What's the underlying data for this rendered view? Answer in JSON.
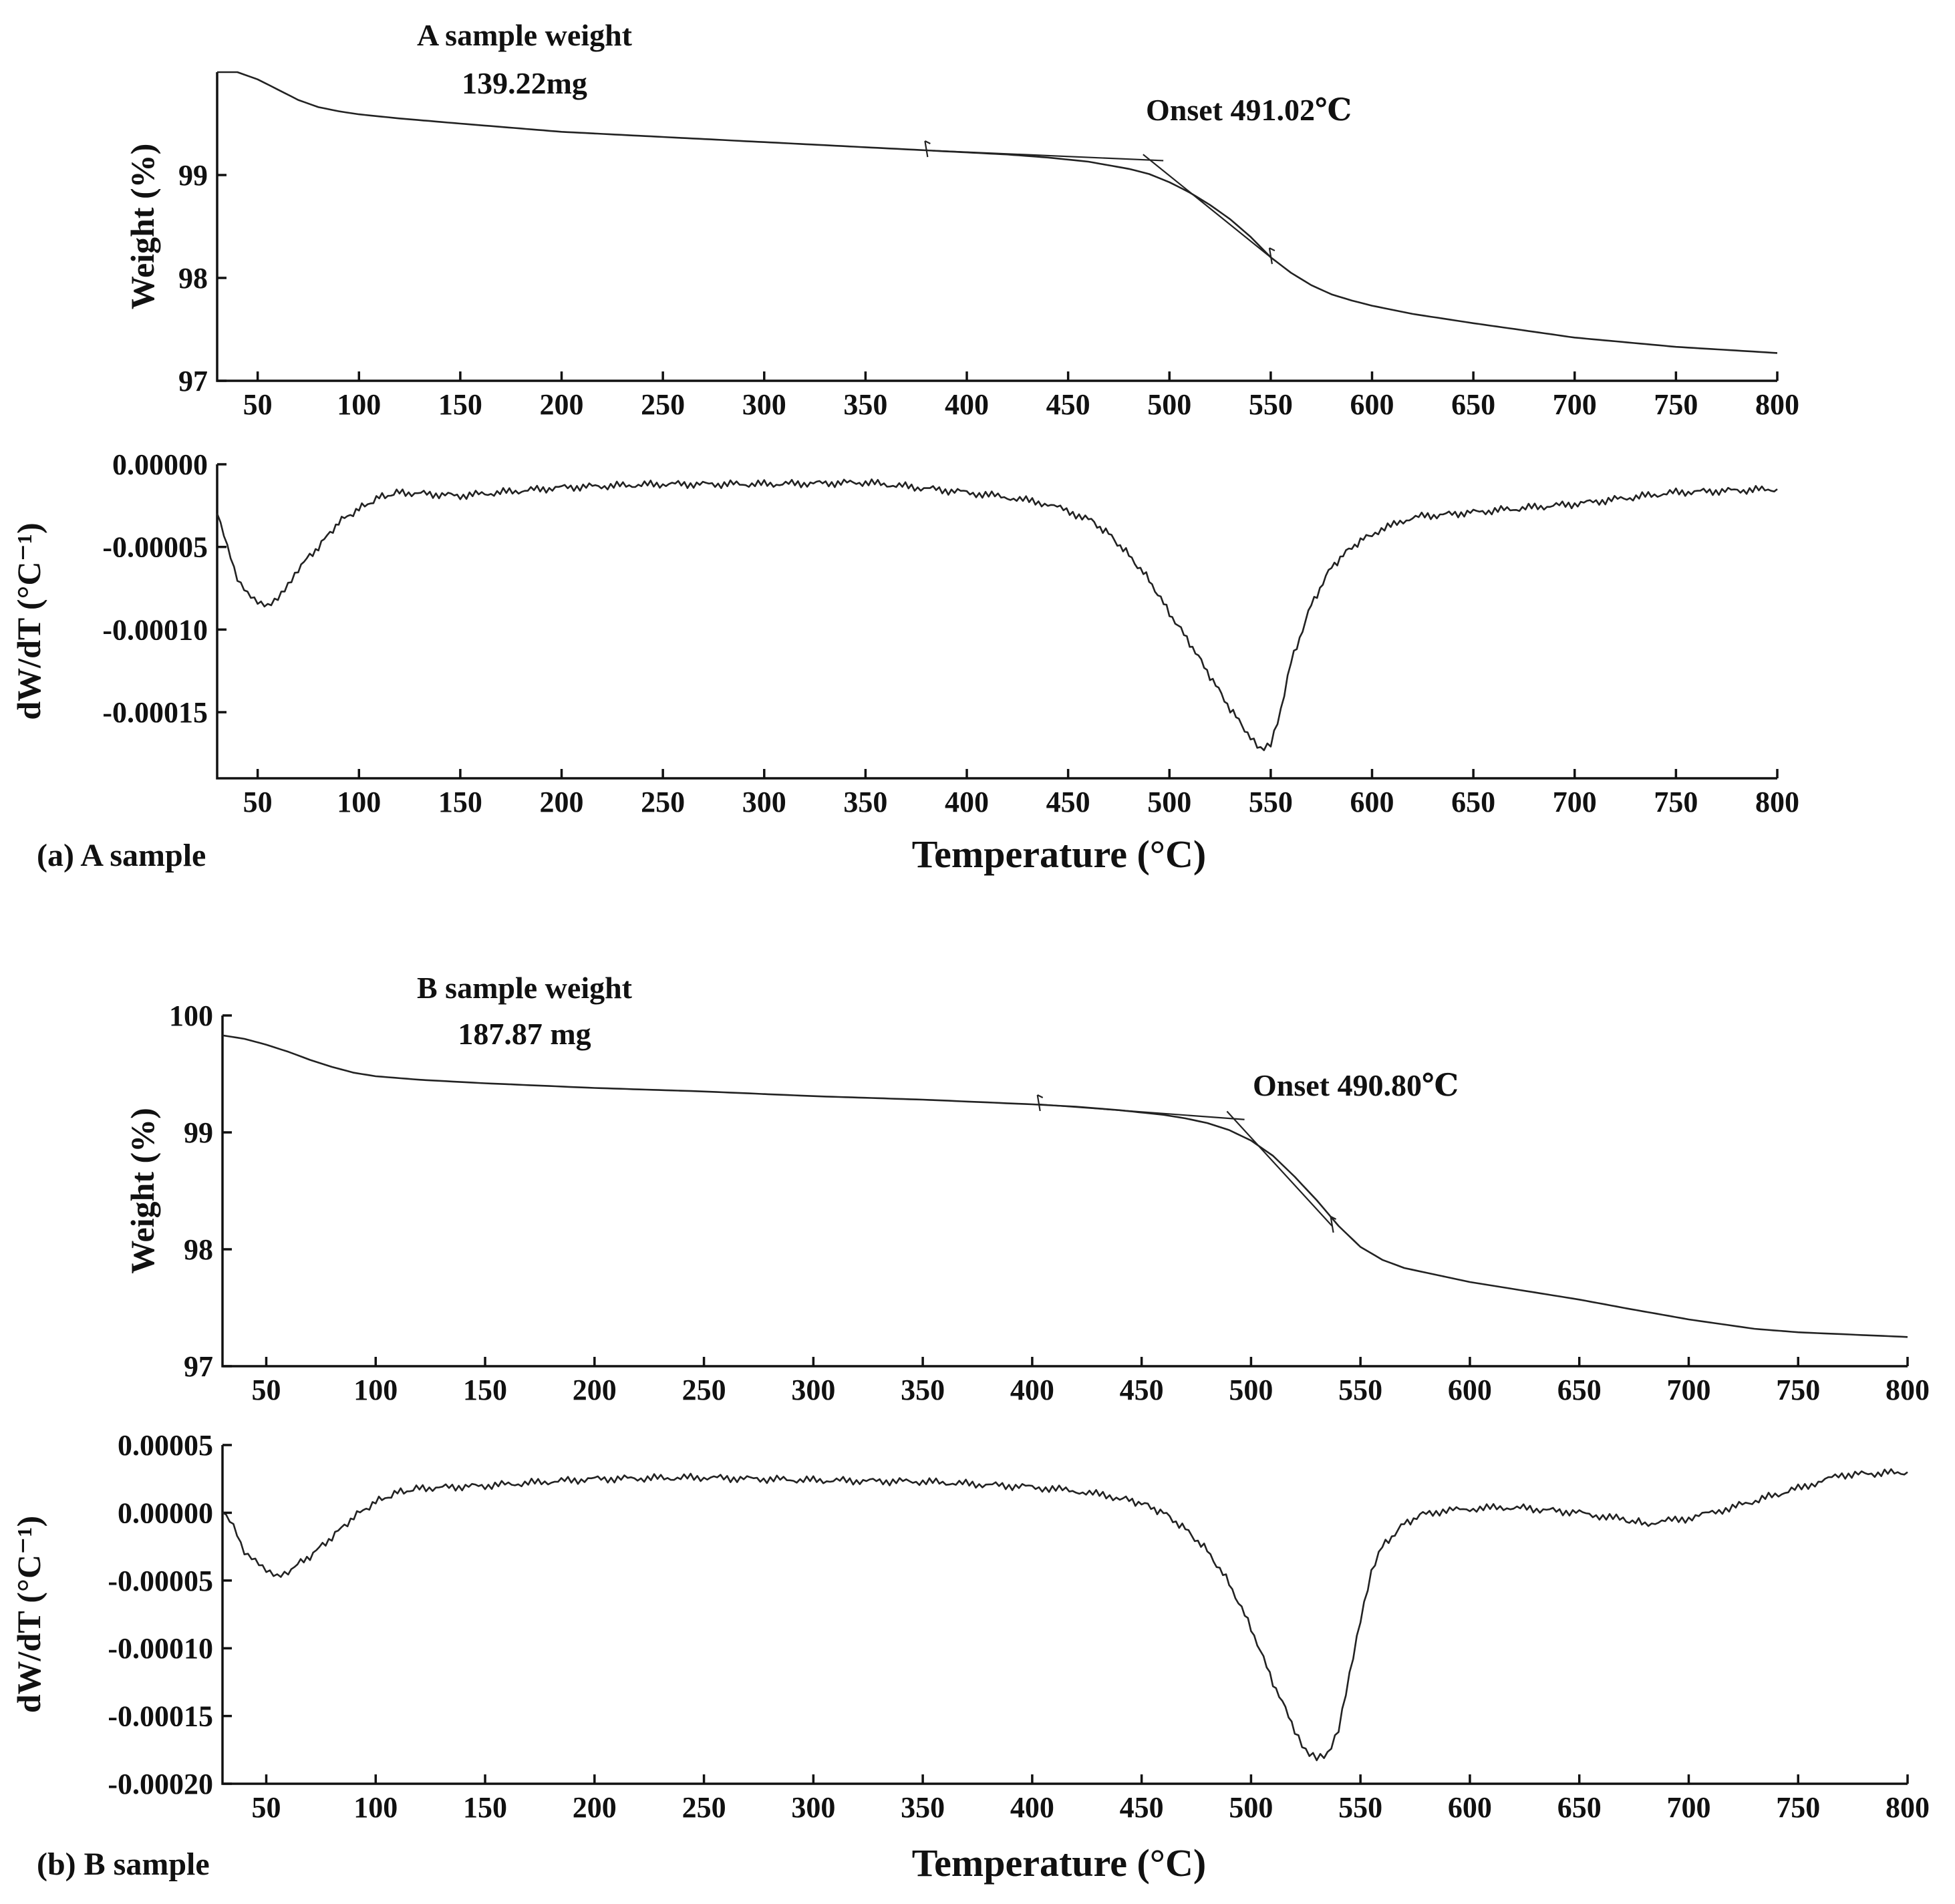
{
  "figure": {
    "panel_a_label": "(a) A sample",
    "panel_b_label": "(b) B sample"
  },
  "chart_data": [
    {
      "id": "a_weight",
      "type": "line",
      "title": "",
      "annotation_title": "A sample weight",
      "annotation_mass": "139.22mg",
      "onset_label": "Onset  491.02℃",
      "onset_temperature": 491.02,
      "xlabel": "",
      "ylabel": "Weight (%)",
      "xlim": [
        30,
        800
      ],
      "ylim": [
        97,
        100
      ],
      "xticks": [
        50,
        100,
        150,
        200,
        250,
        300,
        350,
        400,
        450,
        500,
        550,
        600,
        650,
        700,
        750,
        800
      ],
      "yticks": [
        97,
        98,
        99
      ],
      "grid": false,
      "series": [
        {
          "name": "Weight",
          "x": [
            30,
            40,
            50,
            60,
            70,
            80,
            90,
            100,
            120,
            150,
            200,
            250,
            300,
            350,
            380,
            400,
            420,
            440,
            460,
            480,
            490,
            500,
            510,
            520,
            530,
            540,
            550,
            560,
            570,
            580,
            590,
            600,
            620,
            650,
            700,
            750,
            800
          ],
          "y": [
            100.0,
            100.0,
            99.93,
            99.83,
            99.73,
            99.66,
            99.62,
            99.59,
            99.55,
            99.5,
            99.42,
            99.37,
            99.32,
            99.27,
            99.24,
            99.22,
            99.2,
            99.17,
            99.13,
            99.06,
            99.01,
            98.93,
            98.83,
            98.71,
            98.57,
            98.4,
            98.2,
            98.05,
            97.93,
            97.84,
            97.78,
            97.73,
            97.65,
            97.56,
            97.42,
            97.33,
            97.27
          ]
        }
      ],
      "tangent_lines": [
        {
          "x": [
            380,
            497
          ],
          "y": [
            99.24,
            99.14
          ]
        },
        {
          "x": [
            487,
            550
          ],
          "y": [
            99.2,
            98.2
          ]
        }
      ],
      "markers": [
        {
          "x": 380,
          "y": 99.24
        },
        {
          "x": 550,
          "y": 98.2
        }
      ]
    },
    {
      "id": "a_derivative",
      "type": "line",
      "title": "",
      "xlabel": "Temperature (°C)",
      "ylabel": "dW/dT (°C⁻¹)",
      "xlim": [
        30,
        800
      ],
      "ylim": [
        -0.00019,
        0.0
      ],
      "xticks": [
        50,
        100,
        150,
        200,
        250,
        300,
        350,
        400,
        450,
        500,
        550,
        600,
        650,
        700,
        750,
        800
      ],
      "yticks": [
        0.0,
        -5e-05,
        -0.0001,
        -0.00015
      ],
      "ytick_labels": [
        "0.00000",
        "-0.00005",
        "-0.00010",
        "-0.00015"
      ],
      "grid": false,
      "series": [
        {
          "name": "dW/dT",
          "x": [
            30,
            35,
            40,
            45,
            50,
            55,
            60,
            65,
            70,
            80,
            90,
            100,
            110,
            120,
            150,
            200,
            250,
            300,
            350,
            400,
            420,
            440,
            460,
            470,
            480,
            490,
            500,
            510,
            520,
            530,
            540,
            545,
            550,
            555,
            560,
            570,
            580,
            590,
            600,
            620,
            650,
            700,
            750,
            800
          ],
          "y": [
            -3e-05,
            -5e-05,
            -7e-05,
            -7.8e-05,
            -8.3e-05,
            -8.5e-05,
            -8e-05,
            -7.2e-05,
            -6.3e-05,
            -5e-05,
            -3.5e-05,
            -2.7e-05,
            -2e-05,
            -1.7e-05,
            -1.9e-05,
            -1.4e-05,
            -1.2e-05,
            -1.2e-05,
            -1.1e-05,
            -1.7e-05,
            -2e-05,
            -2.4e-05,
            -3.3e-05,
            -4.2e-05,
            -5.5e-05,
            -7e-05,
            -9e-05,
            -0.000108,
            -0.000128,
            -0.000148,
            -0.000165,
            -0.000173,
            -0.00017,
            -0.00015,
            -0.00012,
            -8.5e-05,
            -6.2e-05,
            -5e-05,
            -4.2e-05,
            -3.2e-05,
            -2.9e-05,
            -2.4e-05,
            -1.7e-05,
            -1.5e-05
          ]
        }
      ]
    },
    {
      "id": "b_weight",
      "type": "line",
      "title": "",
      "annotation_title": "B sample weight",
      "annotation_mass": "187.87 mg",
      "onset_label": "Onset  490.80℃",
      "onset_temperature": 490.8,
      "xlabel": "",
      "ylabel": "Weight (%)",
      "xlim": [
        30,
        800
      ],
      "ylim": [
        97,
        100
      ],
      "xticks": [
        50,
        100,
        150,
        200,
        250,
        300,
        350,
        400,
        450,
        500,
        550,
        600,
        650,
        700,
        750,
        800
      ],
      "yticks": [
        97,
        98,
        99,
        100
      ],
      "grid": false,
      "series": [
        {
          "name": "Weight",
          "x": [
            30,
            40,
            50,
            60,
            70,
            80,
            90,
            100,
            120,
            150,
            200,
            250,
            300,
            350,
            400,
            420,
            440,
            460,
            470,
            480,
            490,
            500,
            510,
            520,
            530,
            540,
            550,
            560,
            570,
            580,
            600,
            620,
            650,
            670,
            700,
            730,
            750,
            800
          ],
          "y": [
            99.83,
            99.8,
            99.75,
            99.69,
            99.62,
            99.56,
            99.51,
            99.48,
            99.45,
            99.42,
            99.38,
            99.35,
            99.31,
            99.28,
            99.24,
            99.22,
            99.19,
            99.15,
            99.12,
            99.08,
            99.02,
            98.93,
            98.8,
            98.62,
            98.42,
            98.2,
            98.02,
            97.91,
            97.84,
            97.8,
            97.72,
            97.66,
            97.57,
            97.5,
            97.4,
            97.32,
            97.29,
            97.25
          ]
        }
      ],
      "tangent_lines": [
        {
          "x": [
            403,
            497
          ],
          "y": [
            99.24,
            99.11
          ]
        },
        {
          "x": [
            489,
            537
          ],
          "y": [
            99.18,
            98.2
          ]
        }
      ],
      "markers": [
        {
          "x": 403,
          "y": 99.24
        },
        {
          "x": 537,
          "y": 98.2
        }
      ]
    },
    {
      "id": "b_derivative",
      "type": "line",
      "title": "",
      "xlabel": "Temperature (°C)",
      "ylabel": "dW/dT (°C⁻¹)",
      "xlim": [
        30,
        800
      ],
      "ylim": [
        -0.0002,
        5e-05
      ],
      "xticks": [
        50,
        100,
        150,
        200,
        250,
        300,
        350,
        400,
        450,
        500,
        550,
        600,
        650,
        700,
        750,
        800
      ],
      "yticks": [
        5e-05,
        0.0,
        -5e-05,
        -0.0001,
        -0.00015,
        -0.0002
      ],
      "ytick_labels": [
        "0.00005",
        "0.00000",
        "-0.00005",
        "-0.00010",
        "-0.00015",
        "-0.00020"
      ],
      "grid": false,
      "series": [
        {
          "name": "dW/dT",
          "x": [
            30,
            35,
            40,
            45,
            50,
            55,
            60,
            70,
            80,
            90,
            100,
            110,
            120,
            150,
            200,
            250,
            300,
            350,
            400,
            420,
            440,
            450,
            460,
            470,
            480,
            490,
            500,
            510,
            520,
            525,
            530,
            535,
            540,
            545,
            550,
            555,
            560,
            570,
            580,
            600,
            620,
            650,
            670,
            680,
            700,
            720,
            750,
            770,
            800
          ],
          "y": [
            0.0,
            -1e-05,
            -3e-05,
            -3.5e-05,
            -4.2e-05,
            -4.6e-05,
            -4.3e-05,
            -3.2e-05,
            -1.8e-05,
            -3e-06,
            8e-06,
            1.5e-05,
            1.8e-05,
            2e-05,
            2.5e-05,
            2.6e-05,
            2.4e-05,
            2.3e-05,
            1.9e-05,
            1.6e-05,
            1.1e-05,
            7e-06,
            0.0,
            -1.2e-05,
            -2.8e-05,
            -5.2e-05,
            -8.5e-05,
            -0.000125,
            -0.00016,
            -0.000175,
            -0.00018,
            -0.000178,
            -0.00016,
            -0.00012,
            -8e-05,
            -4.5e-05,
            -2.5e-05,
            -8e-06,
            0.0,
            3e-06,
            4e-06,
            0.0,
            -5e-06,
            -8e-06,
            -4e-06,
            4e-06,
            1.8e-05,
            2.8e-05,
            3e-05
          ]
        }
      ]
    }
  ]
}
